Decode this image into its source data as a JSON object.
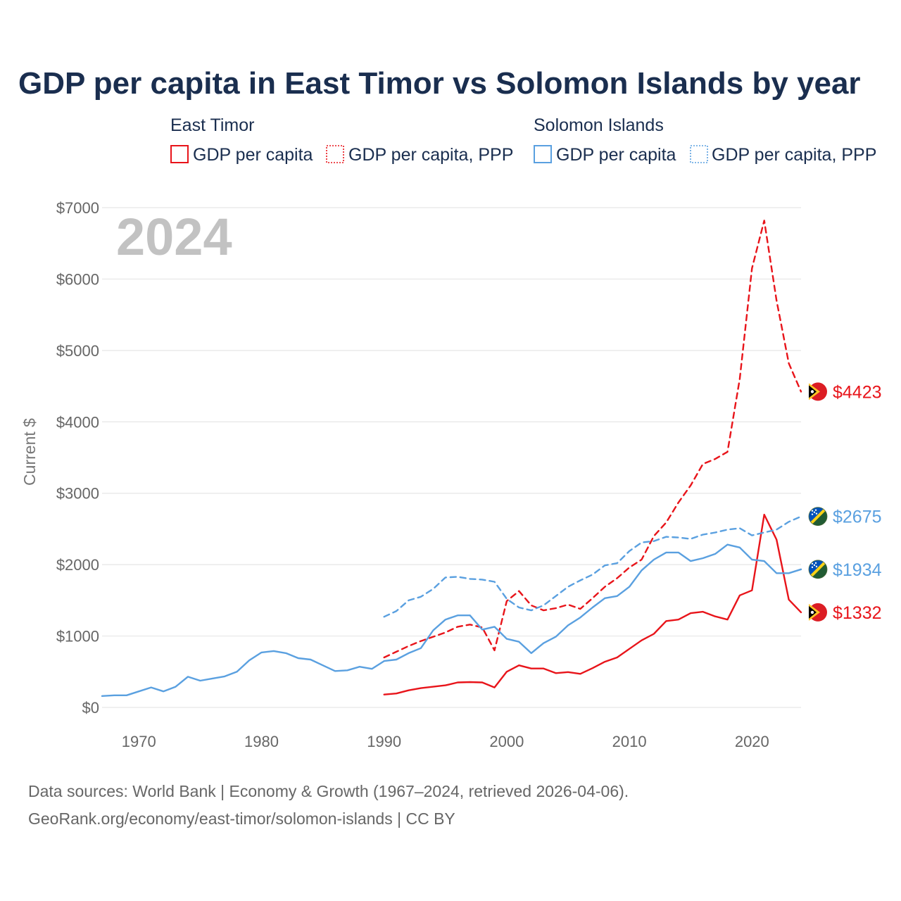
{
  "chart_data": {
    "type": "line",
    "title": "GDP per capita in East Timor vs Solomon Islands by year",
    "ylabel": "Current $",
    "xlabel": "",
    "xlim": [
      1967,
      2024
    ],
    "ylim": [
      0,
      7000
    ],
    "yticks": [
      0,
      1000,
      2000,
      3000,
      4000,
      5000,
      6000,
      7000
    ],
    "ytick_labels": [
      "$0",
      "$1000",
      "$2000",
      "$3000",
      "$4000",
      "$5000",
      "$6000",
      "$7000"
    ],
    "xticks": [
      1970,
      1980,
      1990,
      2000,
      2010,
      2020
    ],
    "xtick_labels": [
      "1970",
      "1980",
      "1990",
      "2000",
      "2010",
      "2020"
    ],
    "year_label": "2024",
    "colors": {
      "east_timor": "#e8141a",
      "solomon": "#5aa0e0"
    },
    "legend": {
      "groups": [
        {
          "name": "East Timor",
          "items": [
            "GDP per capita",
            "GDP per capita, PPP"
          ]
        },
        {
          "name": "Solomon Islands",
          "items": [
            "GDP per capita",
            "GDP per capita, PPP"
          ]
        }
      ]
    },
    "series": [
      {
        "name": "East Timor GDP per capita",
        "country": "east_timor",
        "style": "solid",
        "end_label": "$1332",
        "end_value": 1332,
        "x": [
          1990,
          1991,
          1992,
          1993,
          1994,
          1995,
          1996,
          1997,
          1998,
          1999,
          2000,
          2001,
          2002,
          2003,
          2004,
          2005,
          2006,
          2007,
          2008,
          2009,
          2010,
          2011,
          2012,
          2013,
          2014,
          2015,
          2016,
          2017,
          2018,
          2019,
          2020,
          2021,
          2022,
          2023,
          2024
        ],
        "values": [
          180,
          195,
          240,
          270,
          290,
          310,
          350,
          355,
          350,
          280,
          500,
          590,
          545,
          545,
          480,
          495,
          470,
          550,
          640,
          700,
          820,
          940,
          1030,
          1210,
          1230,
          1320,
          1340,
          1275,
          1230,
          1570,
          1640,
          2700,
          2350,
          1510,
          1332
        ]
      },
      {
        "name": "East Timor GDP per capita, PPP",
        "country": "east_timor",
        "style": "dashed",
        "end_label": "$4423",
        "end_value": 4423,
        "x": [
          1990,
          1991,
          1992,
          1993,
          1994,
          1995,
          1996,
          1997,
          1998,
          1999,
          2000,
          2001,
          2002,
          2003,
          2004,
          2005,
          2006,
          2007,
          2008,
          2009,
          2010,
          2011,
          2012,
          2013,
          2014,
          2015,
          2016,
          2017,
          2018,
          2019,
          2020,
          2021,
          2022,
          2023,
          2024
        ],
        "values": [
          700,
          780,
          860,
          930,
          990,
          1050,
          1130,
          1160,
          1120,
          800,
          1490,
          1630,
          1430,
          1360,
          1390,
          1440,
          1380,
          1530,
          1690,
          1810,
          1960,
          2070,
          2400,
          2590,
          2870,
          3110,
          3410,
          3480,
          3580,
          4600,
          6150,
          6820,
          5700,
          4820,
          4423
        ]
      },
      {
        "name": "Solomon Islands GDP per capita",
        "country": "solomon",
        "style": "solid",
        "end_label": "$1934",
        "end_value": 1934,
        "x": [
          1967,
          1968,
          1969,
          1970,
          1971,
          1972,
          1973,
          1974,
          1975,
          1976,
          1977,
          1978,
          1979,
          1980,
          1981,
          1982,
          1983,
          1984,
          1985,
          1986,
          1987,
          1988,
          1989,
          1990,
          1991,
          1992,
          1993,
          1994,
          1995,
          1996,
          1997,
          1998,
          1999,
          2000,
          2001,
          2002,
          2003,
          2004,
          2005,
          2006,
          2007,
          2008,
          2009,
          2010,
          2011,
          2012,
          2013,
          2014,
          2015,
          2016,
          2017,
          2018,
          2019,
          2020,
          2021,
          2022,
          2023,
          2024
        ],
        "values": [
          160,
          170,
          170,
          225,
          280,
          225,
          290,
          430,
          375,
          405,
          435,
          500,
          660,
          770,
          790,
          760,
          690,
          670,
          590,
          510,
          520,
          570,
          540,
          650,
          670,
          760,
          830,
          1080,
          1230,
          1290,
          1290,
          1090,
          1130,
          960,
          920,
          760,
          900,
          990,
          1150,
          1260,
          1400,
          1530,
          1560,
          1690,
          1920,
          2070,
          2170,
          2170,
          2050,
          2090,
          2150,
          2280,
          2240,
          2070,
          2050,
          1880,
          1880,
          1934
        ]
      },
      {
        "name": "Solomon Islands GDP per capita, PPP",
        "country": "solomon",
        "style": "dashed",
        "end_label": "$2675",
        "end_value": 2675,
        "x": [
          1990,
          1991,
          1992,
          1993,
          1994,
          1995,
          1996,
          1997,
          1998,
          1999,
          2000,
          2001,
          2002,
          2003,
          2004,
          2005,
          2006,
          2007,
          2008,
          2009,
          2010,
          2011,
          2012,
          2013,
          2014,
          2015,
          2016,
          2017,
          2018,
          2019,
          2020,
          2021,
          2022,
          2023,
          2024
        ],
        "values": [
          1270,
          1350,
          1500,
          1550,
          1660,
          1820,
          1830,
          1800,
          1790,
          1760,
          1520,
          1400,
          1360,
          1430,
          1560,
          1690,
          1780,
          1860,
          1990,
          2020,
          2190,
          2310,
          2330,
          2390,
          2380,
          2360,
          2420,
          2450,
          2490,
          2510,
          2410,
          2450,
          2490,
          2600,
          2675
        ]
      }
    ]
  },
  "footer": {
    "line1": "Data sources: World Bank | Economy & Growth (1967–2024, retrieved 2026-04-06).",
    "line2": "GeoRank.org/economy/east-timor/solomon-islands | CC BY"
  }
}
